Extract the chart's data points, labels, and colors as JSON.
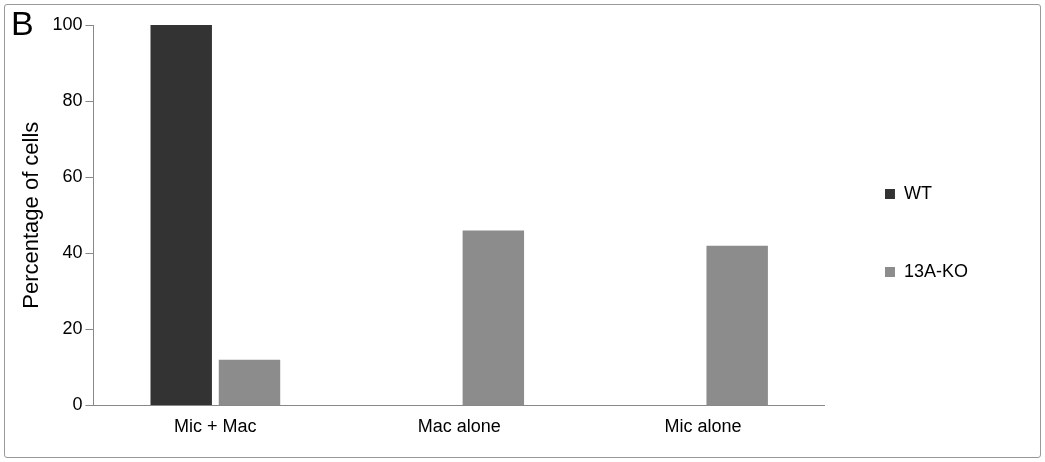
{
  "chart_data": {
    "type": "bar",
    "ylabel": "Percentage of cells",
    "categories": [
      "Mic + Mac",
      "Mac alone",
      "Mic alone"
    ],
    "series": [
      {
        "name": "WT",
        "color": "#333333",
        "values": [
          100,
          0,
          0
        ]
      },
      {
        "name": "13A-KO",
        "color": "#8c8c8c",
        "values": [
          12,
          46,
          42
        ]
      }
    ],
    "ylim": [
      0,
      100
    ],
    "yticks": [
      0,
      20,
      40,
      60,
      80,
      100
    ],
    "grid": false,
    "legend": "right",
    "annotations": [
      "B"
    ]
  }
}
